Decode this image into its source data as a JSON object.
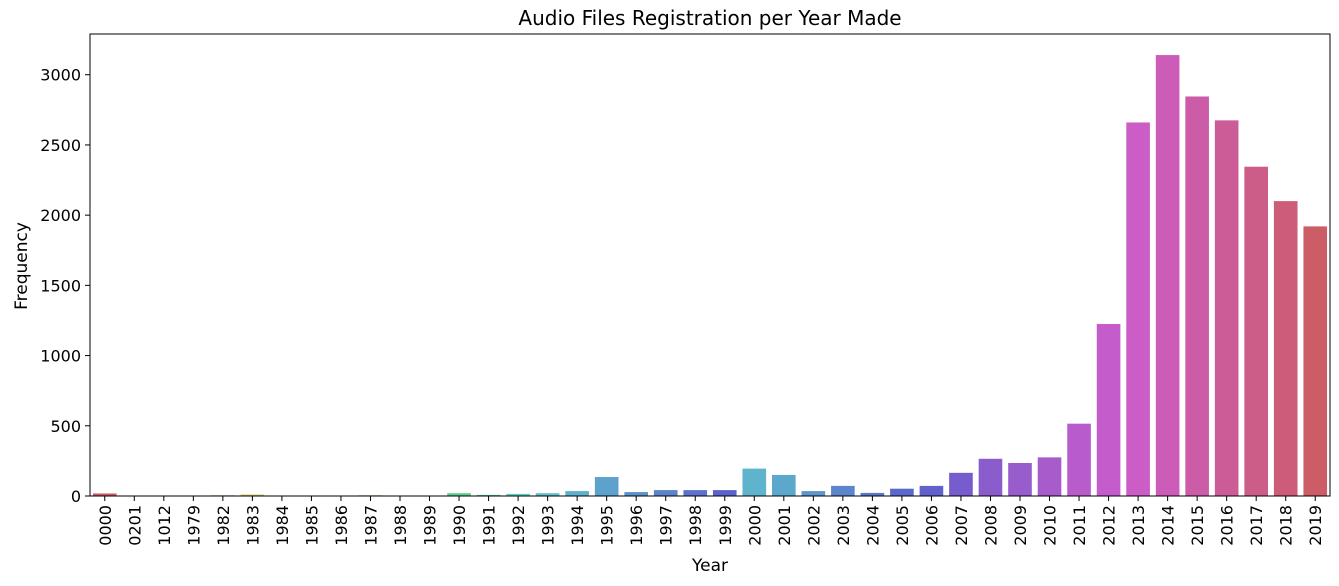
{
  "chart_data": {
    "type": "bar",
    "title": "Audio Files Registration per Year Made",
    "xlabel": "Year",
    "ylabel": "Frequency",
    "ylim": [
      0,
      3290
    ],
    "yticks": [
      0,
      500,
      1000,
      1500,
      2000,
      2500,
      3000
    ],
    "grid": false,
    "categories": [
      "0000",
      "0201",
      "1012",
      "1979",
      "1982",
      "1983",
      "1984",
      "1985",
      "1986",
      "1987",
      "1988",
      "1989",
      "1990",
      "1991",
      "1992",
      "1993",
      "1994",
      "1995",
      "1996",
      "1997",
      "1998",
      "1999",
      "2000",
      "2001",
      "2002",
      "2003",
      "2004",
      "2005",
      "2006",
      "2007",
      "2008",
      "2009",
      "2010",
      "2011",
      "2012",
      "2013",
      "2014",
      "2015",
      "2016",
      "2017",
      "2018",
      "2019"
    ],
    "values": [
      18,
      1,
      1,
      1,
      5,
      10,
      1,
      1,
      1,
      5,
      1,
      1,
      20,
      8,
      15,
      20,
      35,
      135,
      28,
      42,
      42,
      42,
      195,
      150,
      35,
      72,
      22,
      52,
      72,
      165,
      265,
      235,
      275,
      515,
      1225,
      2660,
      3140,
      2845,
      2675,
      2345,
      2100,
      1920
    ],
    "colors": [
      "#cc5963",
      "#cc6253",
      "#cc7a55",
      "#cc9257",
      "#ccab59",
      "#ccc35b",
      "#bccc5c",
      "#a5cc5d",
      "#8dcc5e",
      "#74cc5f",
      "#5ccc60",
      "#5ccc76",
      "#5ccc8e",
      "#5ccca7",
      "#5cccc0",
      "#5cc1cc",
      "#5cb1cc",
      "#5ca2cc",
      "#5c92cc",
      "#5c82cc",
      "#5c72cc",
      "#5c62cc",
      "#5db4cc",
      "#5ca8cc",
      "#5c96cc",
      "#5c86cc",
      "#5c76cc",
      "#5c69cc",
      "#6260cc",
      "#765ccc",
      "#8a5ccc",
      "#995ccc",
      "#a85ccc",
      "#b85ccc",
      "#c55ccc",
      "#cc5cc6",
      "#cc5cb8",
      "#cc5ca8",
      "#cc5c98",
      "#cc5c88",
      "#cc5c78",
      "#cc5c66"
    ]
  }
}
